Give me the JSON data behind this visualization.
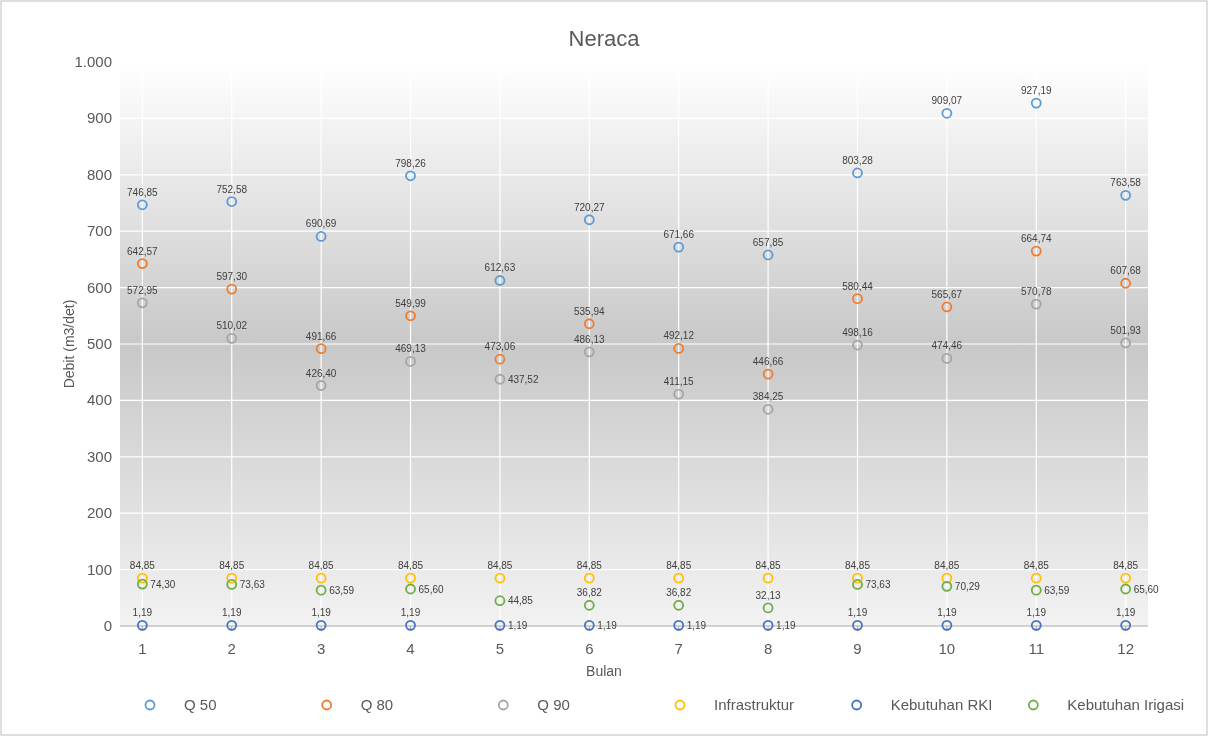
{
  "chart_data": {
    "type": "scatter",
    "title": "Neraca",
    "xlabel": "Bulan",
    "ylabel": "Debit (m3/det)",
    "x": [
      1,
      2,
      3,
      4,
      5,
      6,
      7,
      8,
      9,
      10,
      11,
      12
    ],
    "xlim": [
      0.75,
      12.25
    ],
    "xticks": [
      1,
      2,
      3,
      4,
      5,
      6,
      7,
      8,
      9,
      10,
      11,
      12
    ],
    "ylim": [
      0,
      1000
    ],
    "yticks": [
      {
        "value": 0,
        "label": "0"
      },
      {
        "value": 100,
        "label": "100"
      },
      {
        "value": 200,
        "label": "200"
      },
      {
        "value": 300,
        "label": "300"
      },
      {
        "value": 400,
        "label": "400"
      },
      {
        "value": 500,
        "label": "500"
      },
      {
        "value": 600,
        "label": "600"
      },
      {
        "value": 700,
        "label": "700"
      },
      {
        "value": 800,
        "label": "800"
      },
      {
        "value": 900,
        "label": "900"
      },
      {
        "value": 1000,
        "label": "1.000"
      }
    ],
    "grid": true,
    "legend": "bottom",
    "marker": "circle",
    "series": [
      {
        "name": "Q 50",
        "color": "#5b9bd5",
        "values": [
          746.85,
          752.58,
          690.69,
          798.26,
          612.63,
          720.27,
          671.66,
          657.85,
          803.28,
          909.07,
          927.19,
          763.58
        ],
        "value_labels": [
          "746,85",
          "752,58",
          "690,69",
          "798,26",
          "612,63",
          "720,27",
          "671,66",
          "657,85",
          "803,28",
          "909,07",
          "927,19",
          "763,58"
        ]
      },
      {
        "name": "Q 80",
        "color": "#ed7d31",
        "values": [
          642.57,
          597.3,
          491.66,
          549.99,
          473.06,
          535.94,
          492.12,
          446.66,
          580.44,
          565.67,
          664.74,
          607.68
        ],
        "value_labels": [
          "642,57",
          "597,30",
          "491,66",
          "549,99",
          "473,06",
          "535,94",
          "492,12",
          "446,66",
          "580,44",
          "565,67",
          "664,74",
          "607,68"
        ]
      },
      {
        "name": "Q 90",
        "color": "#a5a5a5",
        "values": [
          572.95,
          510.02,
          426.4,
          469.13,
          437.52,
          486.13,
          411.15,
          384.25,
          498.16,
          474.46,
          570.78,
          501.93
        ],
        "value_labels": [
          "572,95",
          "510,02",
          "426,40",
          "469,13",
          "437,52",
          "486,13",
          "411,15",
          "384,25",
          "498,16",
          "474,46",
          "570,78",
          "501,93"
        ]
      },
      {
        "name": "Infrastruktur",
        "color": "#ffc000",
        "values": [
          84.85,
          84.85,
          84.85,
          84.85,
          84.85,
          84.85,
          84.85,
          84.85,
          84.85,
          84.85,
          84.85,
          84.85
        ],
        "value_labels": [
          "84,85",
          "84,85",
          "84,85",
          "84,85",
          "84,85",
          "84,85",
          "84,85",
          "84,85",
          "84,85",
          "84,85",
          "84,85",
          "84,85"
        ]
      },
      {
        "name": "Kebutuhan RKI",
        "color": "#4472c4",
        "values": [
          1.19,
          1.19,
          1.19,
          1.19,
          1.19,
          1.19,
          1.19,
          1.19,
          1.19,
          1.19,
          1.19,
          1.19
        ],
        "value_labels": [
          "1,19",
          "1,19",
          "1,19",
          "1,19",
          "1,19",
          "1,19",
          "1,19",
          "1,19",
          "1,19",
          "1,19",
          "1,19",
          "1,19"
        ]
      },
      {
        "name": "Kebutuhan Irigasi",
        "color": "#70ad47",
        "values": [
          74.3,
          73.63,
          63.59,
          65.6,
          44.85,
          36.82,
          36.82,
          32.13,
          73.63,
          70.29,
          63.59,
          65.6
        ],
        "value_labels": [
          "74,30",
          "73,63",
          "63,59",
          "65,60",
          "44,85",
          "36,82",
          "36,82",
          "32,13",
          "73,63",
          "70,29",
          "63,59",
          "65,60"
        ]
      }
    ]
  }
}
